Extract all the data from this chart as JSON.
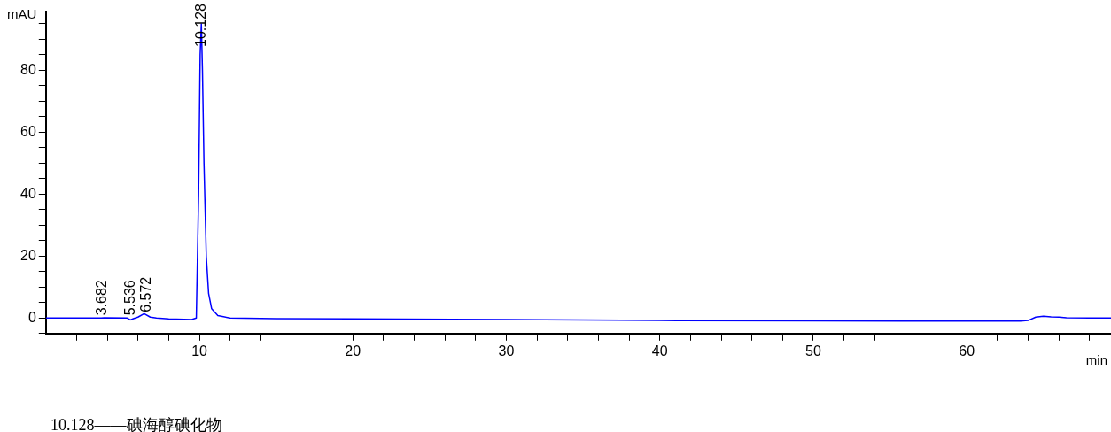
{
  "chart_data": {
    "type": "line",
    "xlabel": "min",
    "ylabel": "mAU",
    "x": [
      0,
      2,
      3.6,
      3.8,
      5.3,
      5.5,
      5.7,
      6.0,
      6.4,
      6.8,
      7.2,
      8,
      9.5,
      9.8,
      9.95,
      10.05,
      10.128,
      10.2,
      10.3,
      10.45,
      10.6,
      10.8,
      11.2,
      12,
      15,
      20,
      30,
      40,
      50,
      60,
      63.5,
      64,
      64.5,
      65,
      65.5,
      66,
      66.5,
      68,
      69.4
    ],
    "series": [
      {
        "color": "#0000ff",
        "values": [
          0,
          0,
          0,
          0.1,
          0,
          -0.6,
          -0.2,
          0.3,
          1.4,
          0.3,
          0,
          -0.3,
          -0.5,
          0,
          40,
          85,
          95,
          80,
          50,
          20,
          8,
          3,
          0.8,
          0,
          -0.2,
          -0.3,
          -0.5,
          -0.8,
          -0.9,
          -1,
          -1,
          -0.8,
          0.3,
          0.6,
          0.4,
          0.3,
          0.1,
          0,
          0
        ]
      }
    ],
    "xlim": [
      0,
      69.4
    ],
    "xticks": [
      {
        "value": 2,
        "label": null
      },
      {
        "value": 4,
        "label": null
      },
      {
        "value": 6,
        "label": null
      },
      {
        "value": 8,
        "label": null
      },
      10,
      {
        "value": 12,
        "label": null
      },
      {
        "value": 14,
        "label": null
      },
      {
        "value": 16,
        "label": null
      },
      {
        "value": 18,
        "label": null
      },
      20,
      {
        "value": 22,
        "label": null
      },
      {
        "value": 24,
        "label": null
      },
      {
        "value": 26,
        "label": null
      },
      {
        "value": 28,
        "label": null
      },
      30,
      {
        "value": 32,
        "label": null
      },
      {
        "value": 34,
        "label": null
      },
      {
        "value": 36,
        "label": null
      },
      {
        "value": 38,
        "label": null
      },
      40,
      {
        "value": 42,
        "label": null
      },
      {
        "value": 44,
        "label": null
      },
      {
        "value": 46,
        "label": null
      },
      {
        "value": 48,
        "label": null
      },
      50,
      {
        "value": 52,
        "label": null
      },
      {
        "value": 54,
        "label": null
      },
      {
        "value": 56,
        "label": null
      },
      {
        "value": 58,
        "label": null
      },
      60,
      {
        "value": 62,
        "label": null
      },
      {
        "value": 64,
        "label": null
      },
      {
        "value": 66,
        "label": null
      },
      {
        "value": 68,
        "label": null
      }
    ],
    "ylim": [
      -5,
      99
    ],
    "yticks": [
      {
        "value": -5,
        "label": null
      },
      0,
      {
        "value": 5,
        "label": null
      },
      {
        "value": 10,
        "label": null
      },
      {
        "value": 15,
        "label": null
      },
      20,
      {
        "value": 25,
        "label": null
      },
      {
        "value": 30,
        "label": null
      },
      {
        "value": 35,
        "label": null
      },
      40,
      {
        "value": 45,
        "label": null
      },
      {
        "value": 50,
        "label": null
      },
      {
        "value": 55,
        "label": null
      },
      60,
      {
        "value": 65,
        "label": null
      },
      {
        "value": 70,
        "label": null
      },
      {
        "value": 75,
        "label": null
      },
      80,
      {
        "value": 85,
        "label": null
      },
      {
        "value": 90,
        "label": null
      },
      {
        "value": 95,
        "label": null
      }
    ],
    "grid": false,
    "legend": false,
    "marker": "none",
    "line_style": "solid",
    "annotations": [
      {
        "text": "3.682",
        "x": 3.682,
        "y": 0
      },
      {
        "text": "5.536",
        "x": 5.536,
        "y": 0
      },
      {
        "text": "6.572",
        "x": 6.572,
        "y": 1
      },
      {
        "text": "10.128",
        "x": 10.128,
        "y": 95
      },
      "10.128——碘海醇碘化物"
    ]
  }
}
